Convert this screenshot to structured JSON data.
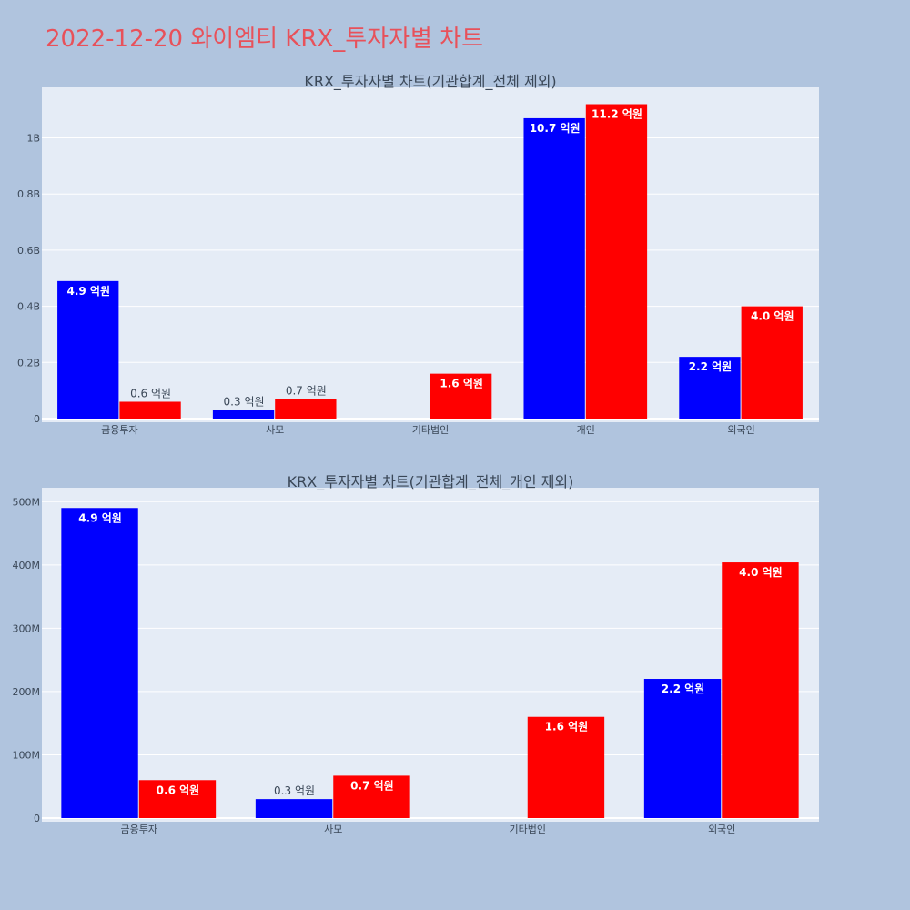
{
  "page": {
    "title": "2022-12-20 와이엠티 KRX_투자자별 차트"
  },
  "colors": {
    "series_a": "#0000ff",
    "series_b": "#ff0000",
    "plot_bg": "#e5ecf6",
    "page_bg": "#b0c4de",
    "title": "#e8515a"
  },
  "chart_data": [
    {
      "type": "bar",
      "title": "KRX_투자자별 차트(기관합계_전체 제외)",
      "categories": [
        "금융투자",
        "사모",
        "기타법인",
        "개인",
        "외국인"
      ],
      "series": [
        {
          "values": [
            490000000,
            30000000,
            null,
            1070000000,
            220000000
          ],
          "labels": [
            "4.9 억원",
            "0.3 억원",
            "",
            "10.7 억원",
            "2.2 억원"
          ]
        },
        {
          "values": [
            60000000,
            70000000,
            160000000,
            1120000000,
            400000000
          ],
          "labels": [
            "0.6 억원",
            "0.7 억원",
            "1.6 억원",
            "11.2 억원",
            "4.0 억원"
          ]
        }
      ],
      "ylim": [
        0,
        1180000000
      ],
      "yticks": [
        0,
        200000000,
        400000000,
        600000000,
        800000000,
        1000000000
      ],
      "ytick_labels": [
        "0",
        "0.2B",
        "0.4B",
        "0.6B",
        "0.8B",
        "1B"
      ],
      "grid": true
    },
    {
      "type": "bar",
      "title": "KRX_투자자별 차트(기관합계_전체_개인 제외)",
      "categories": [
        "금융투자",
        "사모",
        "기타법인",
        "외국인"
      ],
      "series": [
        {
          "values": [
            490000000,
            30000000,
            null,
            220000000
          ],
          "labels": [
            "4.9 억원",
            "0.3 억원",
            "",
            "2.2 억원"
          ]
        },
        {
          "values": [
            60000000,
            67000000,
            160000000,
            404000000
          ],
          "labels": [
            "0.6 억원",
            "0.7 억원",
            "1.6 억원",
            "4.0 억원"
          ]
        }
      ],
      "ylim": [
        0,
        522000000
      ],
      "yticks": [
        0,
        100000000,
        200000000,
        300000000,
        400000000,
        500000000
      ],
      "ytick_labels": [
        "0",
        "100M",
        "200M",
        "300M",
        "400M",
        "500M"
      ],
      "grid": true
    }
  ]
}
